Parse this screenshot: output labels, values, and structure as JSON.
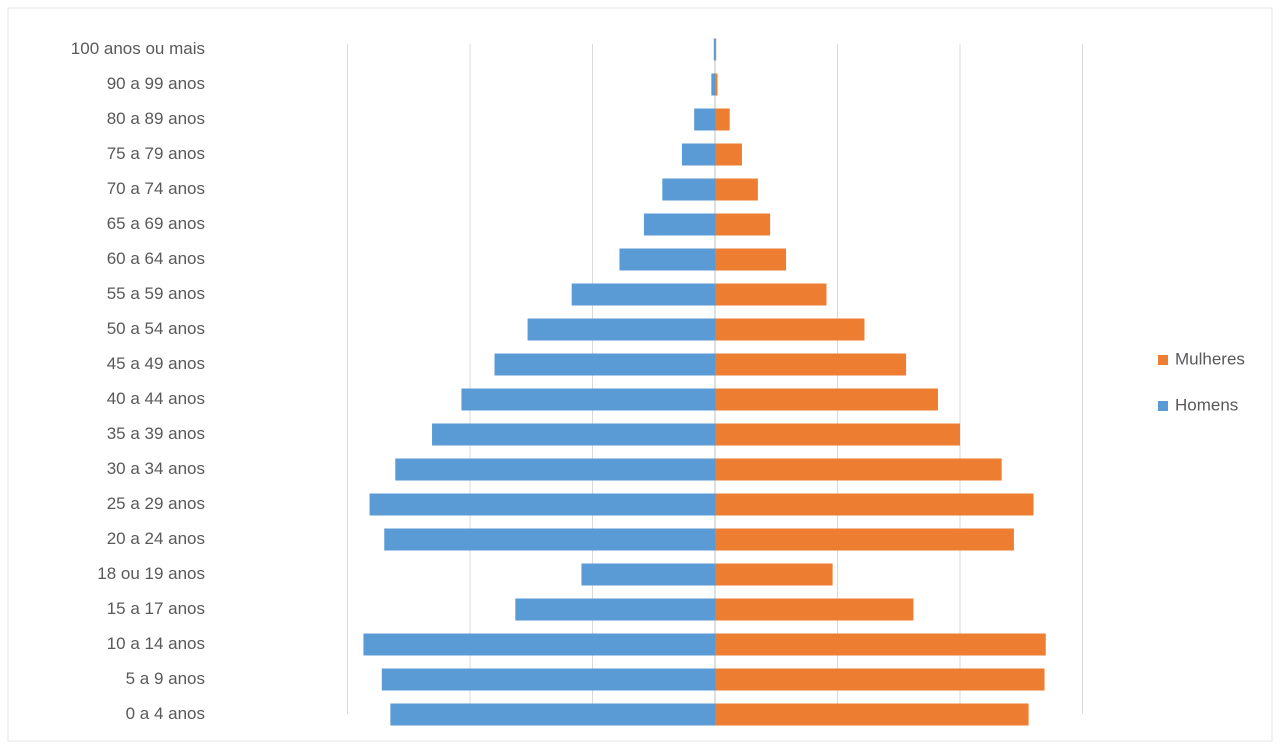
{
  "chart_data": {
    "type": "bar",
    "orientation": "horizontal",
    "stacked": true,
    "categories": [
      "0 a 4 anos",
      "5 a 9 anos",
      "10 a 14 anos",
      "15 a 17 anos",
      "18 ou 19 anos",
      "20 a 24 anos",
      "25 a 29 anos",
      "30 a 34 anos",
      "35 a 39 anos",
      "40 a 44 anos",
      "45 a 49 anos",
      "50 a 54 anos",
      "55 a 59 anos",
      "60 a 64 anos",
      "65 a 69 anos",
      "70 a 74 anos",
      "75 a 79 anos",
      "80 a 89 anos",
      "90 a 99 anos",
      "100 anos ou mais"
    ],
    "series": [
      {
        "name": "Homens",
        "color": "#5b9bd5",
        "values": [
          -2.65,
          -2.72,
          -2.87,
          -1.63,
          -1.09,
          -2.7,
          -2.82,
          -2.61,
          -2.31,
          -2.07,
          -1.8,
          -1.53,
          -1.17,
          -0.78,
          -0.58,
          -0.43,
          -0.27,
          -0.17,
          -0.03,
          -0.01
        ]
      },
      {
        "name": "Mulheres",
        "color": "#ed7d31",
        "values": [
          2.56,
          2.69,
          2.7,
          1.62,
          0.96,
          2.44,
          2.6,
          2.34,
          2.0,
          1.82,
          1.56,
          1.22,
          0.91,
          0.58,
          0.45,
          0.35,
          0.22,
          0.12,
          0.02,
          0.01
        ]
      }
    ],
    "xlim": [
      -4,
      4
    ],
    "xticks": [
      -3,
      -2,
      -1,
      0,
      1,
      2,
      3
    ],
    "grid": true,
    "legend": "right"
  }
}
